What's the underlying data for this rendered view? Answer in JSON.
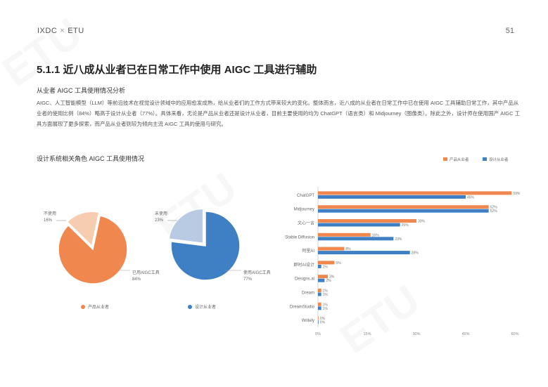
{
  "header": {
    "brand_left": "IXDC",
    "brand_sep": "×",
    "brand_right": "ETU",
    "page_number": "51"
  },
  "title": "5.1.1 近八成从业者已在日常工作中使用 AIGC 工具进行辅助",
  "subtitle": "从业者 AIGC 工具使用情况分析",
  "paragraph": "AIGC、人工智能模型（LLM）等前沿技术在视觉设计领域中的应用愈发成熟，给从业者们的工作方式带来较大的变化。整体而言，近八成的从业者在日常工作中已在使用 AIGC 工具辅助日常工作，其中产品从业者的使用比例（84%）略高于设计从业者（77%）。具体来看，无论是产品从业者还是设计从业者，目前主要使用的均为 ChatGPT（语言类）和 Midjourney（图像类）。除此之外，设计师在使用国产 AIGC 工具方面展现了更多探索，而产品从业者则较为倾向主流 AIGC 工具的使用与研究。",
  "chart_section_title": "设计系统相关角色 AIGC 工具使用情况",
  "chart_data": [
    {
      "type": "pie",
      "labels": [
        "已用AIGC工具",
        "不使用"
      ],
      "values": [
        84,
        16
      ],
      "colors": [
        "#f0874f",
        "#f7cdb1"
      ],
      "label_texts": [
        "已用AIGC工具\n84%",
        "不使用\n16%"
      ],
      "legend": "产品从业者"
    },
    {
      "type": "pie",
      "labels": [
        "使用AIGC工具",
        "未使用"
      ],
      "values": [
        77,
        23
      ],
      "colors": [
        "#3f7fc4",
        "#b9cae3"
      ],
      "label_texts": [
        "使用AIGC工具\n77%",
        "未使用\n23%"
      ],
      "legend": "设计从业者"
    },
    {
      "type": "bar",
      "orientation": "horizontal",
      "categories": [
        "ChatGPT",
        "Midjourney",
        "文心一言",
        "Stable Diffusion",
        "阿里AI",
        "即时AI设计",
        "Designs.ai",
        "Dream",
        "DreamStudio",
        "Writely"
      ],
      "series": [
        {
          "name": "产品从业者",
          "values": [
            59,
            52,
            30,
            16,
            8,
            5,
            3,
            1,
            1,
            0
          ],
          "labels": [
            "59%",
            "52%",
            "30%",
            "16%",
            "8%",
            "5%",
            "3%",
            "1%",
            "1%",
            "0%"
          ],
          "color": "#f0874f"
        },
        {
          "name": "设计从业者",
          "values": [
            45,
            52,
            25,
            23,
            28,
            1,
            2,
            1,
            1,
            0
          ],
          "labels": [
            "45%",
            "52%",
            "25%",
            "23%",
            "28%",
            "1%",
            "2%",
            "1%",
            "1%",
            "0%"
          ],
          "color": "#3f7fc4"
        }
      ],
      "xlim": [
        0,
        60
      ],
      "xticks": [
        "0%",
        "15%",
        "30%",
        "45%",
        "60%"
      ],
      "legend": "top-right"
    }
  ],
  "watermark": "ETU"
}
